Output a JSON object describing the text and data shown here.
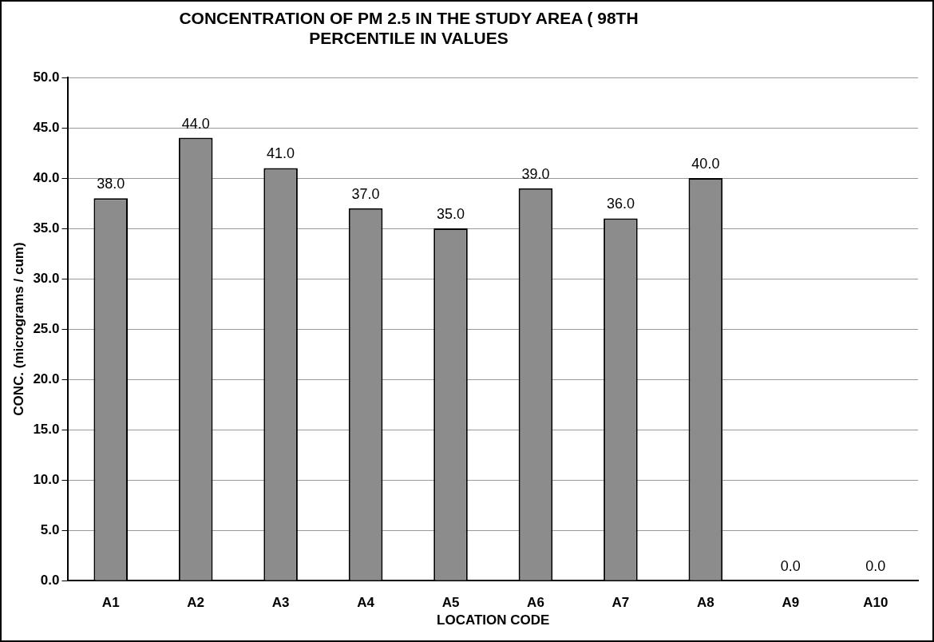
{
  "chart_data": {
    "type": "bar",
    "title": "CONCENTRATION OF PM 2.5 IN THE STUDY AREA ( 98TH PERCENTILE IN VALUES",
    "xlabel": "LOCATION CODE",
    "ylabel": "CONC. (micrograms / cum)",
    "categories": [
      "A1",
      "A2",
      "A3",
      "A4",
      "A5",
      "A6",
      "A7",
      "A8",
      "A9",
      "A10"
    ],
    "values": [
      38,
      44,
      41,
      37,
      35,
      39,
      36,
      40,
      0,
      0
    ],
    "value_labels": [
      "38.0",
      "44.0",
      "41.0",
      "37.0",
      "35.0",
      "39.0",
      "36.0",
      "40.0",
      "0.0",
      "0.0"
    ],
    "color": "#8c8c8c",
    "ylim": [
      0,
      50
    ],
    "yticks": [
      {
        "value": 0,
        "label": "0.0"
      },
      {
        "value": 5,
        "label": "5.0"
      },
      {
        "value": 10,
        "label": "10.0"
      },
      {
        "value": 15,
        "label": "15.0"
      },
      {
        "value": 20,
        "label": "20.0"
      },
      {
        "value": 25,
        "label": "25.0"
      },
      {
        "value": 30,
        "label": "30.0"
      },
      {
        "value": 35,
        "label": "35.0"
      },
      {
        "value": 40,
        "label": "40.0"
      },
      {
        "value": 45,
        "label": "45.0"
      },
      {
        "value": 50,
        "label": "50.0"
      }
    ],
    "grid": "y",
    "legend": false
  }
}
